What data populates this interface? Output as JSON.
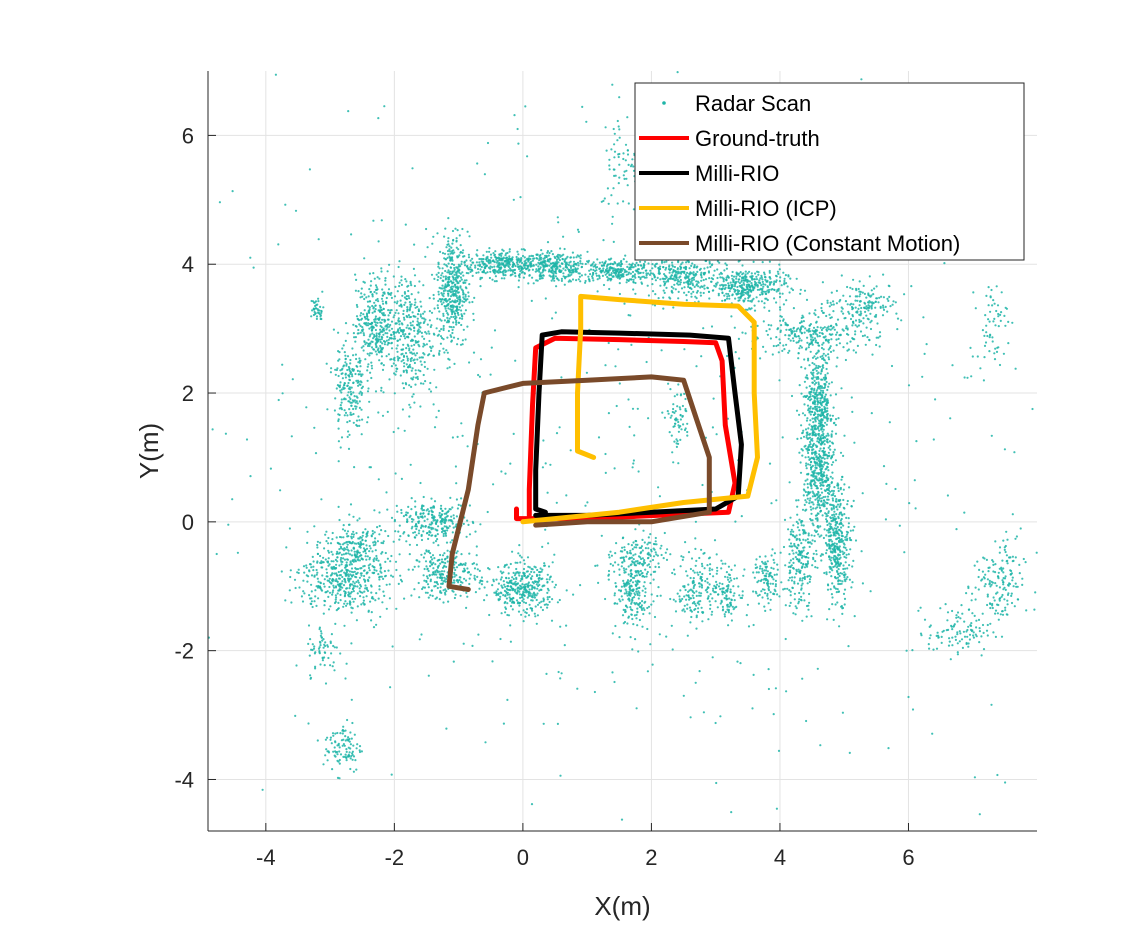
{
  "chart_data": {
    "type": "scatter+line",
    "title": "",
    "xlabel": "X(m)",
    "ylabel": "Y(m)",
    "xlim": [
      -4.9,
      8.0
    ],
    "ylim": [
      -4.8,
      7.0
    ],
    "xticks": [
      -4,
      -2,
      0,
      2,
      4,
      6
    ],
    "yticks": [
      -4,
      -2,
      0,
      2,
      4,
      6
    ],
    "xtick_labels": [
      "-4",
      "-2",
      "0",
      "2",
      "4",
      "6"
    ],
    "ytick_labels": [
      "-4",
      "-2",
      "0",
      "2",
      "4",
      "6"
    ],
    "grid": true,
    "legend_position": "top-right",
    "scatter": {
      "name": "Radar Scan",
      "color": "#1fb5a8",
      "clusters": [
        {
          "cx": -0.3,
          "cy": 4.0,
          "sx": 0.35,
          "sy": 0.1,
          "n": 350
        },
        {
          "cx": 0.5,
          "cy": 3.95,
          "sx": 0.25,
          "sy": 0.12,
          "n": 250
        },
        {
          "cx": 1.4,
          "cy": 3.9,
          "sx": 0.3,
          "sy": 0.1,
          "n": 250
        },
        {
          "cx": 2.5,
          "cy": 3.8,
          "sx": 0.35,
          "sy": 0.15,
          "n": 300
        },
        {
          "cx": 3.5,
          "cy": 3.65,
          "sx": 0.3,
          "sy": 0.15,
          "n": 350
        },
        {
          "cx": -1.1,
          "cy": 3.6,
          "sx": 0.12,
          "sy": 0.45,
          "n": 400
        },
        {
          "cx": -1.8,
          "cy": 2.9,
          "sx": 0.2,
          "sy": 0.5,
          "n": 350
        },
        {
          "cx": -2.3,
          "cy": 3.1,
          "sx": 0.15,
          "sy": 0.35,
          "n": 300
        },
        {
          "cx": -2.7,
          "cy": 2.1,
          "sx": 0.12,
          "sy": 0.4,
          "n": 200
        },
        {
          "cx": 4.6,
          "cy": 1.8,
          "sx": 0.12,
          "sy": 0.45,
          "n": 400
        },
        {
          "cx": 4.6,
          "cy": 0.7,
          "sx": 0.12,
          "sy": 0.5,
          "n": 400
        },
        {
          "cx": 4.9,
          "cy": -0.3,
          "sx": 0.1,
          "sy": 0.45,
          "n": 350
        },
        {
          "cx": 4.3,
          "cy": -0.6,
          "sx": 0.12,
          "sy": 0.4,
          "n": 200
        },
        {
          "cx": 4.5,
          "cy": 2.9,
          "sx": 0.5,
          "sy": 0.15,
          "n": 250
        },
        {
          "cx": 5.3,
          "cy": 3.4,
          "sx": 0.3,
          "sy": 0.15,
          "n": 150
        },
        {
          "cx": 0.0,
          "cy": -1.05,
          "sx": 0.25,
          "sy": 0.2,
          "n": 350
        },
        {
          "cx": -1.2,
          "cy": -0.8,
          "sx": 0.25,
          "sy": 0.2,
          "n": 250
        },
        {
          "cx": -1.4,
          "cy": 0.0,
          "sx": 0.3,
          "sy": 0.15,
          "n": 250
        },
        {
          "cx": -2.8,
          "cy": -0.9,
          "sx": 0.35,
          "sy": 0.25,
          "n": 400
        },
        {
          "cx": -2.6,
          "cy": -0.4,
          "sx": 0.25,
          "sy": 0.2,
          "n": 200
        },
        {
          "cx": 1.7,
          "cy": -1.1,
          "sx": 0.15,
          "sy": 0.25,
          "n": 200
        },
        {
          "cx": 1.8,
          "cy": -0.5,
          "sx": 0.2,
          "sy": 0.15,
          "n": 120
        },
        {
          "cx": 2.7,
          "cy": -1.0,
          "sx": 0.15,
          "sy": 0.3,
          "n": 150
        },
        {
          "cx": 3.2,
          "cy": -1.1,
          "sx": 0.12,
          "sy": 0.2,
          "n": 100
        },
        {
          "cx": 3.8,
          "cy": -0.9,
          "sx": 0.1,
          "sy": 0.2,
          "n": 100
        },
        {
          "cx": 7.4,
          "cy": -1.0,
          "sx": 0.2,
          "sy": 0.35,
          "n": 150
        },
        {
          "cx": 6.8,
          "cy": -1.7,
          "sx": 0.25,
          "sy": 0.2,
          "n": 100
        },
        {
          "cx": -2.8,
          "cy": -3.5,
          "sx": 0.15,
          "sy": 0.2,
          "n": 100
        },
        {
          "cx": -3.1,
          "cy": -2.0,
          "sx": 0.12,
          "sy": 0.2,
          "n": 60
        },
        {
          "cx": 1.6,
          "cy": 5.6,
          "sx": 0.2,
          "sy": 0.4,
          "n": 80
        },
        {
          "cx": 2.4,
          "cy": 1.6,
          "sx": 0.1,
          "sy": 0.25,
          "n": 60
        },
        {
          "cx": 7.3,
          "cy": 3.1,
          "sx": 0.12,
          "sy": 0.3,
          "n": 60
        },
        {
          "cx": -3.2,
          "cy": 3.3,
          "sx": 0.05,
          "sy": 0.1,
          "n": 40
        },
        {
          "cx": 1.5,
          "cy": 1.0,
          "sx": 3.5,
          "sy": 3.0,
          "n": 600
        }
      ]
    },
    "series": [
      {
        "name": "Ground-truth",
        "color": "#ff0000",
        "points": [
          [
            0.1,
            0.1
          ],
          [
            0.1,
            0.5
          ],
          [
            0.15,
            1.8
          ],
          [
            0.2,
            2.7
          ],
          [
            0.5,
            2.85
          ],
          [
            1.5,
            2.83
          ],
          [
            2.5,
            2.8
          ],
          [
            3.0,
            2.78
          ],
          [
            3.1,
            2.5
          ],
          [
            3.15,
            1.5
          ],
          [
            3.3,
            0.6
          ],
          [
            3.2,
            0.15
          ],
          [
            2.5,
            0.12
          ],
          [
            1.0,
            0.05
          ],
          [
            -0.1,
            0.05
          ],
          [
            -0.1,
            0.2
          ]
        ]
      },
      {
        "name": "Milli-RIO",
        "color": "#000000",
        "points": [
          [
            0.35,
            0.15
          ],
          [
            0.2,
            0.2
          ],
          [
            0.2,
            0.8
          ],
          [
            0.25,
            2.0
          ],
          [
            0.3,
            2.9
          ],
          [
            0.6,
            2.95
          ],
          [
            1.5,
            2.93
          ],
          [
            2.6,
            2.9
          ],
          [
            3.2,
            2.85
          ],
          [
            3.3,
            2.0
          ],
          [
            3.4,
            1.2
          ],
          [
            3.35,
            0.4
          ],
          [
            3.0,
            0.2
          ],
          [
            2.0,
            0.15
          ],
          [
            1.0,
            0.1
          ],
          [
            0.2,
            0.1
          ]
        ]
      },
      {
        "name": "Milli-RIO (ICP)",
        "color": "#ffbf00",
        "points": [
          [
            1.1,
            1.0
          ],
          [
            0.85,
            1.1
          ],
          [
            0.85,
            2.0
          ],
          [
            0.9,
            3.0
          ],
          [
            0.9,
            3.5
          ],
          [
            1.5,
            3.45
          ],
          [
            2.5,
            3.38
          ],
          [
            3.35,
            3.35
          ],
          [
            3.6,
            3.1
          ],
          [
            3.6,
            2.0
          ],
          [
            3.65,
            1.0
          ],
          [
            3.5,
            0.4
          ],
          [
            2.5,
            0.3
          ],
          [
            1.5,
            0.15
          ],
          [
            0.5,
            0.05
          ],
          [
            0.0,
            0.0
          ]
        ]
      },
      {
        "name": "Milli-RIO (Constant Motion)",
        "color": "#7a4a2a",
        "points": [
          [
            -0.85,
            -1.05
          ],
          [
            -1.15,
            -1.0
          ],
          [
            -1.1,
            -0.5
          ],
          [
            -0.85,
            0.5
          ],
          [
            -0.7,
            1.5
          ],
          [
            -0.6,
            2.0
          ],
          [
            0.0,
            2.15
          ],
          [
            1.0,
            2.2
          ],
          [
            2.0,
            2.25
          ],
          [
            2.5,
            2.2
          ],
          [
            2.7,
            1.6
          ],
          [
            2.9,
            1.0
          ],
          [
            2.9,
            0.15
          ],
          [
            2.0,
            0.0
          ],
          [
            1.0,
            0.0
          ],
          [
            0.2,
            -0.05
          ]
        ]
      }
    ],
    "legend": [
      "Radar Scan",
      "Ground-truth",
      "Milli-RIO",
      "Milli-RIO (ICP)",
      "Milli-RIO (Constant Motion)"
    ]
  }
}
